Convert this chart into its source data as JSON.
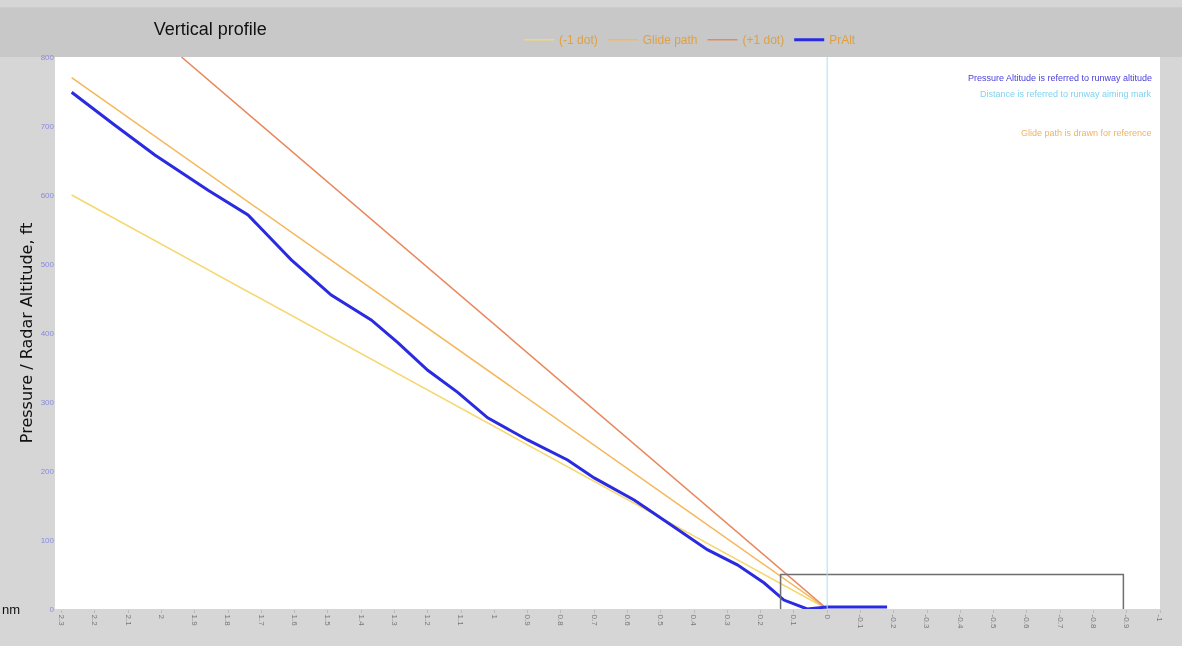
{
  "chart_data": {
    "type": "line",
    "title": "Vertical profile",
    "xlabel": "nm",
    "ylabel": "Pressure / Radar Altitude, ft",
    "xlim": [
      2.32,
      -1.0
    ],
    "xticks": [
      2.3,
      2.2,
      2.1,
      2,
      1.9,
      1.8,
      1.7,
      1.6,
      1.5,
      1.4,
      1.3,
      1.2,
      1.1,
      1,
      0.9,
      0.8,
      0.7,
      0.6,
      0.5,
      0.4,
      0.3,
      0.2,
      0.1,
      0,
      -0.1,
      -0.2,
      -0.3,
      -0.4,
      -0.5,
      -0.6,
      -0.7,
      -0.8,
      -0.9,
      -1
    ],
    "ylim": [
      0,
      800
    ],
    "yticks": [
      0,
      100,
      200,
      300,
      400,
      500,
      600,
      700,
      800
    ],
    "grid": false,
    "legend": "top",
    "marker": "none",
    "line_style": "solid",
    "series": [
      {
        "name": "(-1 dot)",
        "color": "#f5d76e",
        "x": [
          2.27,
          0
        ],
        "values": [
          600,
          0
        ]
      },
      {
        "name": "Glide path",
        "color": "#f5b75a",
        "x": [
          2.27,
          0
        ],
        "values": [
          770,
          0
        ]
      },
      {
        "name": "(+1 dot)",
        "color": "#e8875a",
        "x": [
          1.94,
          0
        ],
        "values": [
          800,
          0
        ]
      },
      {
        "name": "PrAlt",
        "color": "#2a2ae0",
        "x": [
          2.27,
          2.14,
          2.02,
          1.86,
          1.74,
          1.61,
          1.49,
          1.37,
          1.29,
          1.2,
          1.11,
          1.02,
          0.9,
          0.78,
          0.7,
          0.58,
          0.46,
          0.36,
          0.27,
          0.19,
          0.13,
          0.06,
          0,
          -0.18
        ],
        "values": [
          749,
          701,
          658,
          607,
          571,
          506,
          455,
          419,
          386,
          346,
          314,
          277,
          245,
          216,
          190,
          158,
          119,
          86,
          64,
          38,
          13,
          0,
          3,
          3
        ]
      },
      {
        "color": "#6e6e6e",
        "x": [
          0.14,
          0.14,
          -0.89,
          -0.89
        ],
        "values": [
          0,
          50,
          50,
          0
        ]
      }
    ],
    "ref_lines": [
      {
        "axis": "x",
        "value": 0,
        "color": "#a8dff0"
      }
    ],
    "annotations": [
      "Pressure Altitude is referred to runway altitude",
      "Distance is referred to runway aiming mark",
      "Glide path is drawn for reference"
    ]
  }
}
